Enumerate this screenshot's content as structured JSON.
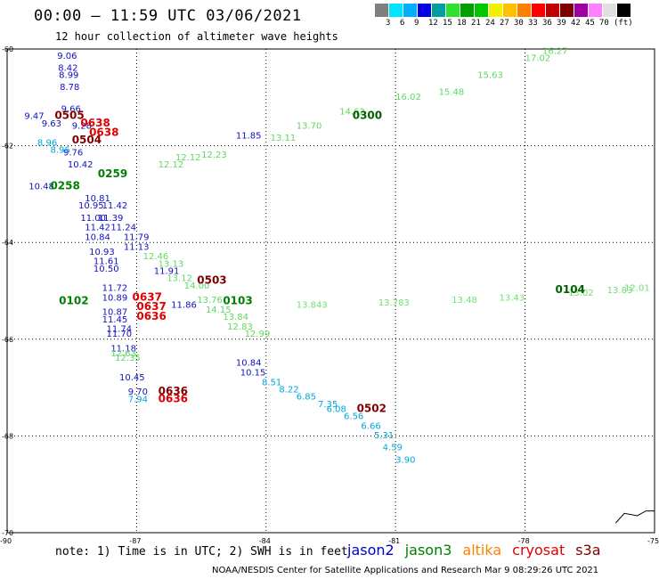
{
  "header": {
    "title": "00:00 — 11:59 UTC 03/06/2021",
    "subtitle": "12 hour collection of altimeter wave heights"
  },
  "legend": {
    "colors": [
      "#7f7f7f",
      "#00e5ff",
      "#00b0ff",
      "#0000e0",
      "#00a0a0",
      "#30e030",
      "#00a000",
      "#00c800",
      "#f0f000",
      "#ffc000",
      "#ff8000",
      "#ff0000",
      "#c00000",
      "#800000",
      "#a000a0",
      "#ff80ff",
      "#e0e0e0",
      "#000000"
    ],
    "labels": [
      "3",
      "6",
      "9",
      "12",
      "15",
      "18",
      "21",
      "24",
      "27",
      "30",
      "33",
      "36",
      "39",
      "42",
      "45",
      "70",
      "(ft)"
    ]
  },
  "axes": {
    "lat_labels": [
      "-60",
      "-62",
      "-64",
      "-66",
      "-68",
      "-70"
    ],
    "lon_labels": [
      "-90",
      "-87",
      "-84",
      "-81",
      "-78",
      "-75"
    ]
  },
  "tracks": [
    {
      "color": "#1010c0",
      "points": [
        {
          "v": "9.06",
          "lat": -60.2,
          "lon": -88.84
        },
        {
          "v": "8.42",
          "lat": -60.45,
          "lon": -88.82
        },
        {
          "v": "8.99",
          "lat": -60.6,
          "lon": -88.8
        },
        {
          "v": "8.78",
          "lat": -60.85,
          "lon": -88.78
        },
        {
          "v": "9.66",
          "lat": -61.3,
          "lon": -88.75
        },
        {
          "v": "9.47",
          "lat": -61.45,
          "lon": -89.6
        },
        {
          "v": "9.63",
          "lat": -61.6,
          "lon": -89.2
        },
        {
          "v": "9.28",
          "lat": -61.65,
          "lon": -88.5
        },
        {
          "v": "9.76",
          "lat": -62.2,
          "lon": -88.7
        },
        {
          "v": "10.42",
          "lat": -62.45,
          "lon": -88.6
        },
        {
          "v": "10.48",
          "lat": -62.9,
          "lon": -89.5
        },
        {
          "v": "10.81",
          "lat": -63.15,
          "lon": -88.2
        },
        {
          "v": "10.95",
          "lat": -63.3,
          "lon": -88.35
        },
        {
          "v": "11.42",
          "lat": -63.3,
          "lon": -87.8
        },
        {
          "v": "11.00",
          "lat": -63.55,
          "lon": -88.3
        },
        {
          "v": "11.39",
          "lat": -63.55,
          "lon": -87.9
        },
        {
          "v": "11.42",
          "lat": -63.75,
          "lon": -88.2
        },
        {
          "v": "11.24",
          "lat": -63.75,
          "lon": -87.6
        },
        {
          "v": "10.84",
          "lat": -63.95,
          "lon": -88.2
        },
        {
          "v": "11.79",
          "lat": -63.95,
          "lon": -87.3
        },
        {
          "v": "11.13",
          "lat": -64.15,
          "lon": -87.3
        },
        {
          "v": "10.93",
          "lat": -64.25,
          "lon": -88.1
        },
        {
          "v": "11.61",
          "lat": -64.45,
          "lon": -88.0
        },
        {
          "v": "10.50",
          "lat": -64.6,
          "lon": -88.0
        },
        {
          "v": "11.91",
          "lat": -64.65,
          "lon": -86.6
        },
        {
          "v": "11.72",
          "lat": -65.0,
          "lon": -87.8
        },
        {
          "v": "10.89",
          "lat": -65.2,
          "lon": -87.8
        },
        {
          "v": "11.86",
          "lat": -65.35,
          "lon": -86.2
        },
        {
          "v": "10.87",
          "lat": -65.5,
          "lon": -87.8
        },
        {
          "v": "11.45",
          "lat": -65.65,
          "lon": -87.8
        },
        {
          "v": "11.74",
          "lat": -65.85,
          "lon": -87.7
        },
        {
          "v": "11.70",
          "lat": -65.95,
          "lon": -87.7
        },
        {
          "v": "11.18",
          "lat": -66.25,
          "lon": -87.6
        },
        {
          "v": "10.84",
          "lat": -66.55,
          "lon": -84.7
        },
        {
          "v": "10.15",
          "lat": -66.75,
          "lon": -84.6
        },
        {
          "v": "10.45",
          "lat": -66.85,
          "lon": -87.4
        },
        {
          "v": "9.70",
          "lat": -67.15,
          "lon": -87.2
        },
        {
          "v": "11.85",
          "lat": -61.85,
          "lon": -84.7
        }
      ]
    },
    {
      "color": "#00a8d8",
      "points": [
        {
          "v": "8.96",
          "lat": -62.0,
          "lon": -89.3
        },
        {
          "v": "8.96",
          "lat": -62.15,
          "lon": -89.0
        },
        {
          "v": "7.94",
          "lat": -67.3,
          "lon": -87.2
        },
        {
          "v": "8.51",
          "lat": -66.95,
          "lon": -84.1
        },
        {
          "v": "8.22",
          "lat": -67.1,
          "lon": -83.7
        },
        {
          "v": "6.85",
          "lat": -67.25,
          "lon": -83.3
        },
        {
          "v": "7.35",
          "lat": -67.4,
          "lon": -82.8
        },
        {
          "v": "6.08",
          "lat": -67.5,
          "lon": -82.6
        },
        {
          "v": "6.56",
          "lat": -67.65,
          "lon": -82.2
        },
        {
          "v": "6.66",
          "lat": -67.85,
          "lon": -81.8
        },
        {
          "v": "5.31",
          "lat": -68.05,
          "lon": -81.5
        },
        {
          "v": "4.59",
          "lat": -68.3,
          "lon": -81.3
        },
        {
          "v": "3.90",
          "lat": -68.55,
          "lon": -81.0
        }
      ]
    },
    {
      "color": "#60d860",
      "points": [
        {
          "v": "12.46",
          "lat": -64.35,
          "lon": -86.85
        },
        {
          "v": "13.13",
          "lat": -64.5,
          "lon": -86.5
        },
        {
          "v": "13.12",
          "lat": -64.8,
          "lon": -86.3
        },
        {
          "v": "14.00",
          "lat": -64.95,
          "lon": -85.9
        },
        {
          "v": "13.76",
          "lat": -65.25,
          "lon": -85.6
        },
        {
          "v": "14.15",
          "lat": -65.45,
          "lon": -85.4
        },
        {
          "v": "13.84",
          "lat": -65.6,
          "lon": -85.0
        },
        {
          "v": "12.83",
          "lat": -65.8,
          "lon": -84.9
        },
        {
          "v": "12.99",
          "lat": -65.95,
          "lon": -84.5
        },
        {
          "v": "12.63",
          "lat": -66.35,
          "lon": -87.6
        },
        {
          "v": "12.35",
          "lat": -66.45,
          "lon": -87.5
        },
        {
          "v": "12.12",
          "lat": -62.45,
          "lon": -86.5
        },
        {
          "v": "12.12",
          "lat": -62.3,
          "lon": -86.1
        },
        {
          "v": "12.23",
          "lat": -62.25,
          "lon": -85.5
        },
        {
          "v": "13.11",
          "lat": -61.9,
          "lon": -83.9
        },
        {
          "v": "13.70",
          "lat": -61.65,
          "lon": -83.3
        },
        {
          "v": "14.62",
          "lat": -61.35,
          "lon": -82.3
        },
        {
          "v": "16.02",
          "lat": -61.05,
          "lon": -81.0
        },
        {
          "v": "15.48",
          "lat": -60.95,
          "lon": -80.0
        },
        {
          "v": "15.63",
          "lat": -60.6,
          "lon": -79.1
        },
        {
          "v": "16.27",
          "lat": -60.1,
          "lon": -77.6
        },
        {
          "v": "17.02",
          "lat": -60.25,
          "lon": -78.0
        }
      ]
    },
    {
      "color": "#70e070",
      "points": [
        {
          "v": "13.843",
          "lat": -65.35,
          "lon": -83.3
        },
        {
          "v": "13.783",
          "lat": -65.3,
          "lon": -81.4
        },
        {
          "v": "13.48",
          "lat": -65.25,
          "lon": -79.7
        },
        {
          "v": "13.43",
          "lat": -65.2,
          "lon": -78.6
        },
        {
          "v": "13.02",
          "lat": -65.1,
          "lon": -77.0
        },
        {
          "v": "13.83",
          "lat": -65.05,
          "lon": -76.1
        },
        {
          "v": "12.01",
          "lat": -65.0,
          "lon": -75.7
        }
      ]
    }
  ],
  "time_labels": [
    {
      "t": "0505",
      "lat": -61.45,
      "lon": -88.9,
      "color": "#800000"
    },
    {
      "t": "0638",
      "lat": -61.6,
      "lon": -88.3,
      "color": "#e00000"
    },
    {
      "t": "0504",
      "lat": -61.95,
      "lon": -88.5,
      "color": "#800000"
    },
    {
      "t": "0638",
      "lat": -61.8,
      "lon": -88.1,
      "color": "#e00000"
    },
    {
      "t": "0300",
      "lat": -61.45,
      "lon": -82.0,
      "color": "#006000"
    },
    {
      "t": "0259",
      "lat": -62.65,
      "lon": -87.9,
      "color": "#008000"
    },
    {
      "t": "0258",
      "lat": -62.9,
      "lon": -89.0,
      "color": "#008000"
    },
    {
      "t": "0503",
      "lat": -64.85,
      "lon": -85.6,
      "color": "#800000"
    },
    {
      "t": "0637",
      "lat": -65.2,
      "lon": -87.1,
      "color": "#e00000"
    },
    {
      "t": "0637",
      "lat": -65.4,
      "lon": -87.0,
      "color": "#e00000"
    },
    {
      "t": "0636",
      "lat": -65.6,
      "lon": -87.0,
      "color": "#e00000"
    },
    {
      "t": "0103",
      "lat": -65.28,
      "lon": -85.0,
      "color": "#008000"
    },
    {
      "t": "0102",
      "lat": -65.28,
      "lon": -88.8,
      "color": "#008000"
    },
    {
      "t": "0104",
      "lat": -65.05,
      "lon": -77.3,
      "color": "#006000"
    },
    {
      "t": "0636",
      "lat": -67.15,
      "lon": -86.5,
      "color": "#800000"
    },
    {
      "t": "0636",
      "lat": -67.3,
      "lon": -86.5,
      "color": "#e00000"
    },
    {
      "t": "0502",
      "lat": -67.5,
      "lon": -81.9,
      "color": "#800000"
    }
  ],
  "note": "note: 1) Time is in UTC; 2) SWH is in feet",
  "satellites": [
    {
      "name": "jason2",
      "color": "#0000d0"
    },
    {
      "name": "jason3",
      "color": "#008000"
    },
    {
      "name": "altika",
      "color": "#ff8000"
    },
    {
      "name": "cryosat",
      "color": "#e00000"
    },
    {
      "name": "s3a",
      "color": "#800000"
    }
  ],
  "footer": "NOAA/NESDIS Center for Satellite Applications and Research   Mar  9 08:29:26 UTC 2021"
}
